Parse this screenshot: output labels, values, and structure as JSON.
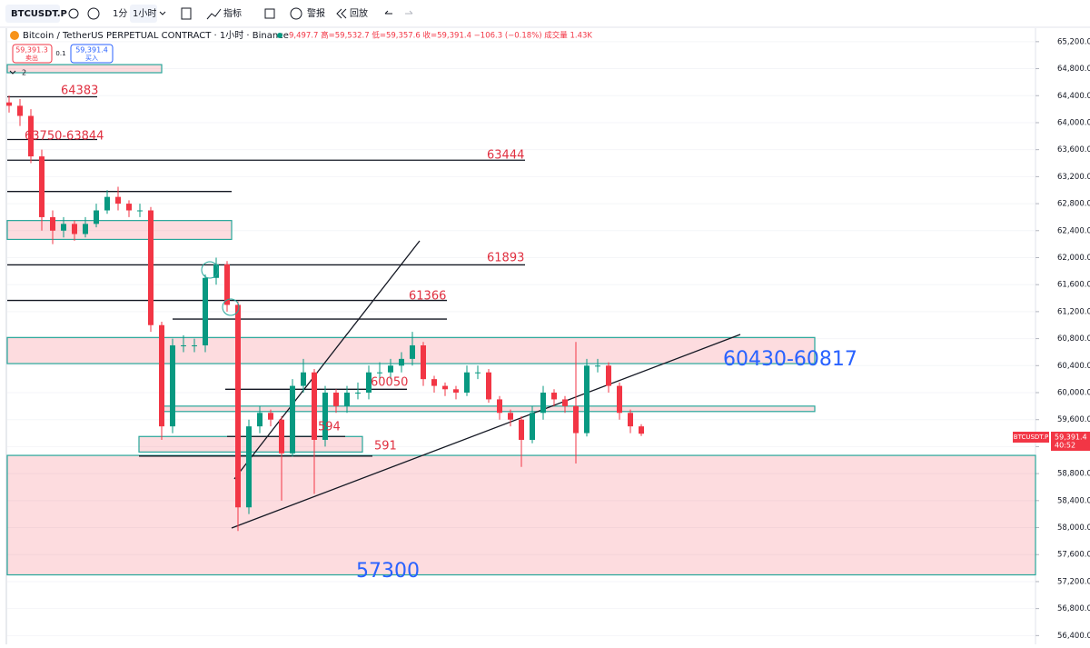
{
  "toolbar": {
    "symbol": "BTCUSDT.P",
    "interval_1m": "1分",
    "interval_1h": "1小时",
    "indicators": "指标",
    "alerts": "警报",
    "replay": "回放"
  },
  "header": {
    "title": "Bitcoin / TetherUS PERPETUAL CONTRACT · 1小时 · Binance",
    "ohlc": "9,497.7 高=59,532.7 低=59,357.6 收=59,391.4 −106.3 (−0.18%) 成交量 1.43K",
    "sell_price": "59,391.3",
    "sell": "卖出",
    "qty": "0.1",
    "buy_price": "59,391.4",
    "buy": "买入",
    "legend_count": "2"
  },
  "price_tag": {
    "symbol": "BTCUSDT.P",
    "price": "59,391.4",
    "countdown": "40:52"
  },
  "chart": {
    "ylim": [
      56270,
      65400
    ],
    "yticks": [
      {
        "value": 65200,
        "label": "65,200.0"
      },
      {
        "value": 64800,
        "label": "64,800.0"
      },
      {
        "value": 64400,
        "label": "64,400.0"
      },
      {
        "value": 64000,
        "label": "64,000.0"
      },
      {
        "value": 63600,
        "label": "63,600.0"
      },
      {
        "value": 63200,
        "label": "63,200.0"
      },
      {
        "value": 62800,
        "label": "62,800.0"
      },
      {
        "value": 62400,
        "label": "62,400.0"
      },
      {
        "value": 62000,
        "label": "62,000.0"
      },
      {
        "value": 61600,
        "label": "61,600.0"
      },
      {
        "value": 61200,
        "label": "61,200.0"
      },
      {
        "value": 60800,
        "label": "60,800.0"
      },
      {
        "value": 60400,
        "label": "60,400.0"
      },
      {
        "value": 60000,
        "label": "60,000.0"
      },
      {
        "value": 59600,
        "label": "59,600.0"
      },
      {
        "value": 59200,
        "label": "59,200.0"
      },
      {
        "value": 58800,
        "label": "58,800.0"
      },
      {
        "value": 58400,
        "label": "58,400.0"
      },
      {
        "value": 58000,
        "label": "58,000.0"
      },
      {
        "value": 57600,
        "label": "57,600.0"
      },
      {
        "value": 57200,
        "label": "57,200.0"
      },
      {
        "value": 56800,
        "label": "56,800.0"
      },
      {
        "value": 56400,
        "label": "56,400.0"
      }
    ],
    "up_color": "#089981",
    "down_color": "#f23645",
    "open": [
      64300,
      64250,
      64100,
      63500,
      62600,
      62400,
      62500,
      62350,
      62500,
      62700,
      62900,
      62800,
      62700,
      62700,
      61000,
      59500,
      60700,
      60700,
      60700,
      61700,
      61900,
      61300,
      58300,
      59500,
      59700,
      59600,
      59100,
      60100,
      60300,
      59300,
      60000,
      59800,
      60000,
      60000,
      60300,
      60300,
      60400,
      60500,
      60700,
      60200,
      60100,
      60050,
      60000,
      60300,
      60300,
      59900,
      59700,
      59600,
      59300,
      59700,
      60000,
      59900,
      59800,
      59400,
      60400,
      60400,
      60100,
      59700,
      59500
    ],
    "high": [
      64400,
      64350,
      64200,
      63600,
      62700,
      62600,
      62550,
      62600,
      62800,
      63000,
      63050,
      62850,
      62800,
      62750,
      61050,
      60800,
      60850,
      60800,
      61750,
      62000,
      61950,
      61350,
      59600,
      59800,
      59750,
      59650,
      60200,
      60500,
      60350,
      60100,
      60050,
      60100,
      60150,
      60400,
      60450,
      60500,
      60600,
      60900,
      60750,
      60250,
      60150,
      60100,
      60400,
      60400,
      60350,
      59950,
      59750,
      59650,
      59800,
      60100,
      60050,
      59950,
      60750,
      60500,
      60500,
      60450,
      60150,
      59750,
      59532.7
    ],
    "low": [
      64150,
      63950,
      63400,
      62400,
      62200,
      62300,
      62250,
      62300,
      62450,
      62650,
      62700,
      62600,
      62600,
      60900,
      59300,
      59400,
      60600,
      60600,
      60600,
      61600,
      61200,
      57950,
      58200,
      59400,
      59500,
      58400,
      59050,
      60000,
      58500,
      59200,
      59700,
      59700,
      59900,
      59900,
      60200,
      60200,
      60300,
      60400,
      60100,
      60000,
      59950,
      59900,
      59950,
      60200,
      59850,
      59600,
      59500,
      58900,
      59250,
      59600,
      59800,
      59700,
      58950,
      59350,
      60300,
      60000,
      59600,
      59400,
      59357.6
    ],
    "close": [
      64250,
      64100,
      63500,
      62600,
      62400,
      62500,
      62350,
      62500,
      62700,
      62900,
      62800,
      62700,
      62700,
      61000,
      59500,
      60700,
      60700,
      60700,
      61700,
      61900,
      61300,
      58300,
      59500,
      59700,
      59600,
      59100,
      60100,
      60300,
      59300,
      60000,
      59800,
      60000,
      60000,
      60300,
      60300,
      60400,
      60500,
      60700,
      60200,
      60100,
      60050,
      60000,
      60300,
      60300,
      59900,
      59700,
      59600,
      59300,
      59700,
      60000,
      59900,
      59800,
      59400,
      60400,
      60400,
      60100,
      59700,
      59500,
      59391.4
    ],
    "zones": [
      {
        "low": 64740,
        "high": 64860
      },
      {
        "low": 62270,
        "high": 62550
      },
      {
        "low": 60430,
        "high": 60817
      },
      {
        "low": 59720,
        "high": 59800
      },
      {
        "low": 59120,
        "high": 59350
      },
      {
        "low": 57300,
        "high": 59070
      }
    ],
    "levels": [
      64383,
      63750,
      63444,
      62980,
      61893,
      61366,
      61090,
      60050,
      59350,
      59060
    ],
    "annotations": [
      "64383",
      "63750-63844",
      "63444",
      "61893",
      "61366",
      "60050",
      "594",
      "591",
      "60430-60817",
      "57300"
    ]
  }
}
